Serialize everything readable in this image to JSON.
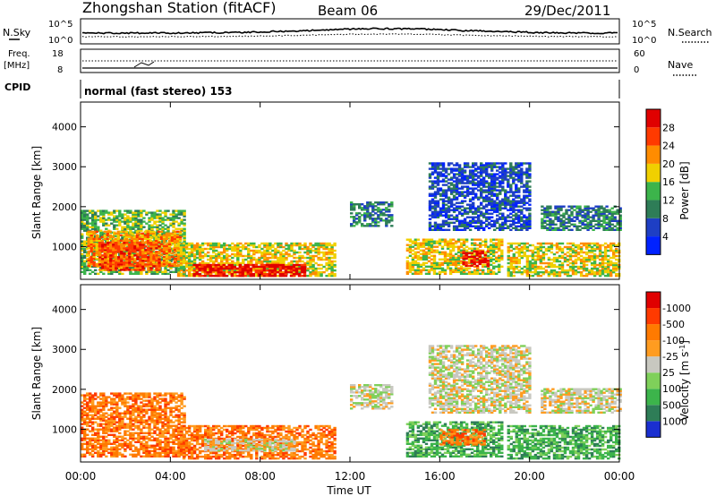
{
  "header": {
    "station": "Zhongshan Station (fitACF)",
    "beam": "Beam 06",
    "date": "29/Dec/2011"
  },
  "strip_panels": {
    "nsky": {
      "left_label": "N.Sky",
      "left_ticks": [
        "10^5",
        "10^0"
      ],
      "right_label": "N.Search",
      "right_ticks": [
        "10^5",
        "10^0"
      ]
    },
    "freq": {
      "left_label_1": "Freq.",
      "left_label_2": "[MHz]",
      "left_ticks": [
        "18",
        "8"
      ],
      "right_label": "Nave",
      "right_ticks": [
        "60",
        "0"
      ]
    },
    "cpid": {
      "label": "CPID",
      "text": "normal (fast stereo) 153"
    }
  },
  "chart_data": [
    {
      "type": "heatmap",
      "title": "",
      "xlabel": "Time UT",
      "ylabel": "Slant Range [km]",
      "x_ticks": [
        "00:00",
        "04:00",
        "08:00",
        "12:00",
        "16:00",
        "20:00",
        "00:00"
      ],
      "xlim_hours": [
        0,
        24
      ],
      "ylim": [
        180,
        4620
      ],
      "y_ticks": [
        1000,
        2000,
        3000,
        4000
      ],
      "colorbar_label": "Power [dB]",
      "colorbar_ticks": [
        "4",
        "8",
        "12",
        "16",
        "20",
        "24",
        "28"
      ],
      "colorbar_colors": [
        "#0022ff",
        "#1e3fc4",
        "#2e7d57",
        "#3cb44b",
        "#f0d000",
        "#ff8c00",
        "#ff3a00",
        "#e00000"
      ],
      "regions": [
        {
          "t": [
            0.0,
            4.6
          ],
          "r": [
            300,
            1900
          ],
          "level": 3
        },
        {
          "t": [
            0.3,
            4.5
          ],
          "r": [
            500,
            1400
          ],
          "level": 5
        },
        {
          "t": [
            0.8,
            3.5
          ],
          "r": [
            400,
            1100
          ],
          "level": 6
        },
        {
          "t": [
            4.3,
            11.3
          ],
          "r": [
            250,
            1100
          ],
          "level": 4
        },
        {
          "t": [
            5.0,
            10.0
          ],
          "r": [
            250,
            550
          ],
          "level": 7
        },
        {
          "t": [
            12.0,
            13.8
          ],
          "r": [
            1500,
            2100
          ],
          "level": 2
        },
        {
          "t": [
            14.5,
            18.8
          ],
          "r": [
            300,
            1200
          ],
          "level": 4
        },
        {
          "t": [
            17.0,
            18.2
          ],
          "r": [
            500,
            900
          ],
          "level": 7
        },
        {
          "t": [
            15.5,
            20.0
          ],
          "r": [
            1400,
            3100
          ],
          "level": 1
        },
        {
          "t": [
            19.0,
            24.0
          ],
          "r": [
            250,
            1100
          ],
          "level": 4
        },
        {
          "t": [
            20.5,
            24.0
          ],
          "r": [
            1400,
            2000
          ],
          "level": 2
        }
      ]
    },
    {
      "type": "heatmap",
      "title": "",
      "xlabel": "Time UT",
      "ylabel": "Slant Range [km]",
      "x_ticks": [
        "00:00",
        "04:00",
        "08:00",
        "12:00",
        "16:00",
        "20:00",
        "00:00"
      ],
      "xlim_hours": [
        0,
        24
      ],
      "ylim": [
        180,
        4620
      ],
      "y_ticks": [
        1000,
        2000,
        3000,
        4000
      ],
      "colorbar_label": "Velocity [m s-1]",
      "colorbar_ticks": [
        "1000",
        "500",
        "100",
        "25",
        "-25",
        "-100",
        "-500",
        "-1000"
      ],
      "colorbar_colors": [
        "#1a2fd0",
        "#2e7d57",
        "#3cb44b",
        "#7fd05a",
        "#c8c8c0",
        "#ff9c20",
        "#ff7a00",
        "#ff3a00",
        "#e00000"
      ],
      "regions": [
        {
          "t": [
            0.0,
            4.6
          ],
          "r": [
            300,
            1900
          ],
          "level": 6
        },
        {
          "t": [
            4.3,
            11.3
          ],
          "r": [
            250,
            1100
          ],
          "level": 6
        },
        {
          "t": [
            5.5,
            9.5
          ],
          "r": [
            450,
            750
          ],
          "level": 4
        },
        {
          "t": [
            12.0,
            13.8
          ],
          "r": [
            1500,
            2100
          ],
          "level": 4
        },
        {
          "t": [
            14.5,
            18.8
          ],
          "r": [
            300,
            1200
          ],
          "level": 2
        },
        {
          "t": [
            16.0,
            18.0
          ],
          "r": [
            600,
            1000
          ],
          "level": 6
        },
        {
          "t": [
            15.5,
            20.0
          ],
          "r": [
            1400,
            3100
          ],
          "level": 4
        },
        {
          "t": [
            19.0,
            24.0
          ],
          "r": [
            250,
            1100
          ],
          "level": 2
        },
        {
          "t": [
            20.5,
            24.0
          ],
          "r": [
            1400,
            2000
          ],
          "level": 4
        }
      ]
    }
  ]
}
